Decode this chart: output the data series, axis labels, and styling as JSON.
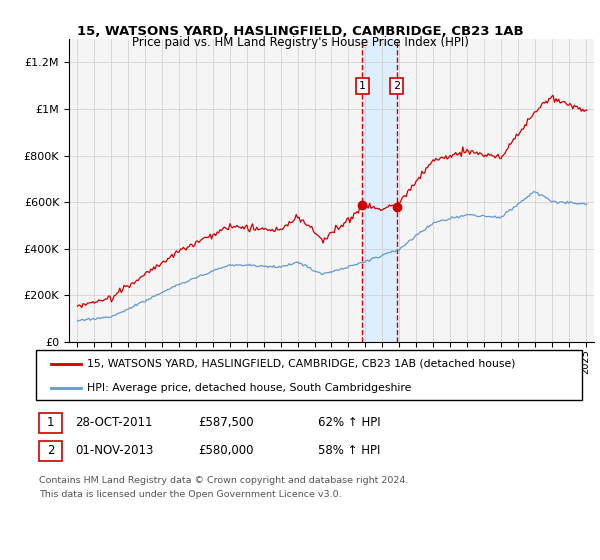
{
  "title": "15, WATSONS YARD, HASLINGFIELD, CAMBRIDGE, CB23 1AB",
  "subtitle": "Price paid vs. HM Land Registry's House Price Index (HPI)",
  "legend_line1": "15, WATSONS YARD, HASLINGFIELD, CAMBRIDGE, CB23 1AB (detached house)",
  "legend_line2": "HPI: Average price, detached house, South Cambridgeshire",
  "footnote1": "Contains HM Land Registry data © Crown copyright and database right 2024.",
  "footnote2": "This data is licensed under the Open Government Licence v3.0.",
  "sale1_date": 2011.83,
  "sale1_price": 587500,
  "sale1_label": "1",
  "sale1_date_str": "28-OCT-2011",
  "sale1_price_str": "£587,500",
  "sale1_hpi_str": "62% ↑ HPI",
  "sale2_date": 2013.84,
  "sale2_price": 580000,
  "sale2_label": "2",
  "sale2_date_str": "01-NOV-2013",
  "sale2_price_str": "£580,000",
  "sale2_hpi_str": "58% ↑ HPI",
  "red_color": "#cc0000",
  "blue_color": "#6699cc",
  "shade_color": "#ddeeff",
  "bg_color": "#f5f5f5",
  "ylim": [
    0,
    1300000
  ],
  "xlim_start": 1994.5,
  "xlim_end": 2025.5
}
